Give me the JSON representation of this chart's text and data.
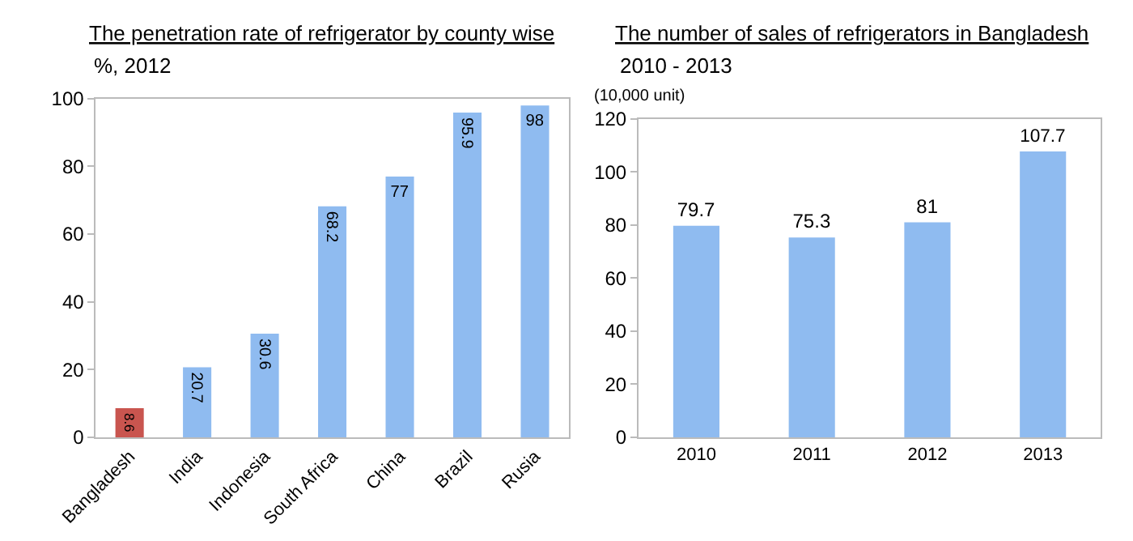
{
  "chart_data": [
    {
      "type": "bar",
      "title": "The penetration rate of refrigerator by county wise",
      "subtitle": "%, 2012",
      "categories": [
        "Bangladesh",
        "India",
        "Indonesia",
        "South Africa",
        "China",
        "Brazil",
        "Rusia"
      ],
      "values": [
        8.6,
        20.7,
        30.6,
        68.2,
        77,
        95.9,
        98
      ],
      "colors": [
        "#c9554f",
        "#8fbbf0",
        "#8fbbf0",
        "#8fbbf0",
        "#8fbbf0",
        "#8fbbf0",
        "#8fbbf0"
      ],
      "ylim": [
        0,
        100
      ],
      "yticks": [
        0,
        20,
        40,
        60,
        80,
        100
      ],
      "data_labels": true,
      "grid": false
    },
    {
      "type": "bar",
      "title": "The number of sales of refrigerators in Bangladesh",
      "subtitle": "2010 - 2013",
      "ylabel": "(10,000 unit)",
      "categories": [
        "2010",
        "2011",
        "2012",
        "2013"
      ],
      "values": [
        79.7,
        75.3,
        81,
        107.7
      ],
      "colors": [
        "#8fbbf0",
        "#8fbbf0",
        "#8fbbf0",
        "#8fbbf0"
      ],
      "ylim": [
        0,
        120
      ],
      "yticks": [
        0,
        20,
        40,
        60,
        80,
        100,
        120
      ],
      "data_labels": true,
      "grid": false
    }
  ]
}
